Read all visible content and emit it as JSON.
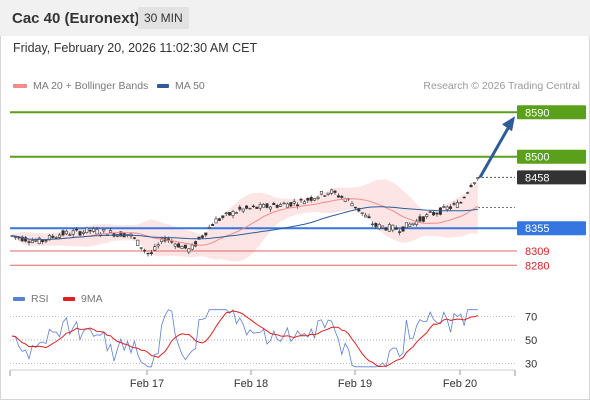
{
  "header": {
    "title": "Cac 40 (Euronext)",
    "timeframe": "30 MIN"
  },
  "datetime": "Friday, February 20, 2026 11:02:30 AM CET",
  "legend": [
    {
      "label": "MA 20 + Bollinger Bands",
      "color": "#f28b8b"
    },
    {
      "label": "MA 50",
      "color": "#2e5c99"
    }
  ],
  "copyright": "Research © 2026 Trading Central",
  "rsi_legend": [
    {
      "label": "RSI",
      "color": "#5b7fd6"
    },
    {
      "label": "9MA",
      "color": "#e02020"
    }
  ],
  "chart_data": [
    {
      "type": "candlestick",
      "x_ticks": [
        "Feb 17",
        "Feb 18",
        "Feb 19",
        "Feb 20"
      ],
      "levels": [
        {
          "value": 8590,
          "label": "8590",
          "color": "#5aa01a"
        },
        {
          "value": 8500,
          "label": "8500",
          "color": "#5aa01a"
        },
        {
          "value": 8458,
          "label": "8458",
          "color": "#333333"
        },
        {
          "value": 8355,
          "label": "8355",
          "color": "#3576e0"
        },
        {
          "value": 8309,
          "label": "8309",
          "color": "#e06666"
        },
        {
          "value": 8280,
          "label": "8280",
          "color": "#e06666"
        }
      ],
      "current_price": 8458,
      "target": 8590,
      "ylim": [
        8240,
        8625
      ]
    },
    {
      "type": "line",
      "title": "RSI",
      "series": [
        {
          "name": "RSI"
        },
        {
          "name": "9MA"
        }
      ],
      "y_ticks": [
        30,
        50,
        70
      ],
      "ylim": [
        20,
        80
      ]
    }
  ]
}
